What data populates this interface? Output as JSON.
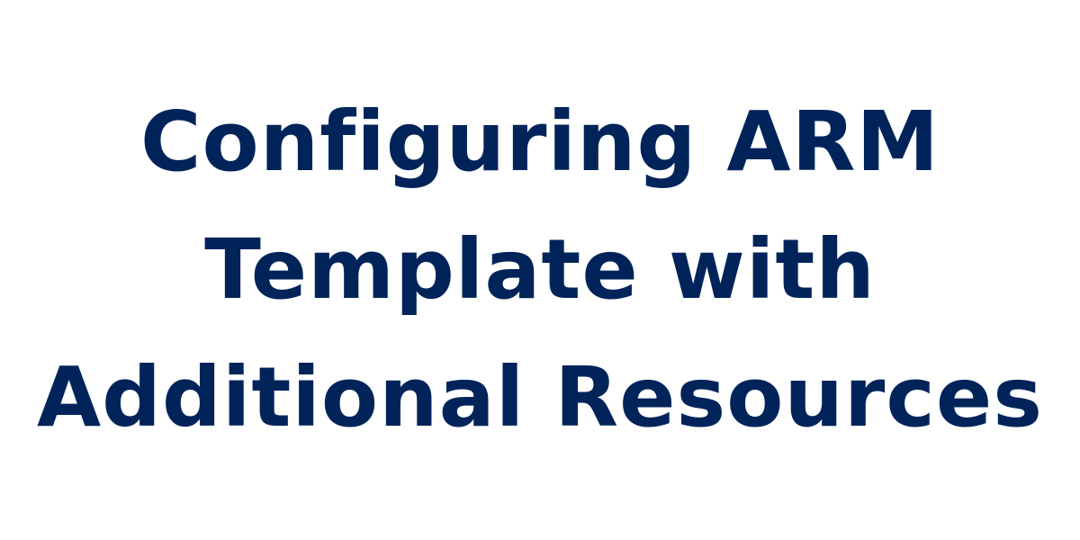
{
  "title": {
    "lines": [
      "Configuring ARM",
      "Template with",
      "Additional Resources"
    ],
    "color": "#00245a"
  },
  "background_color": "#ffffff"
}
